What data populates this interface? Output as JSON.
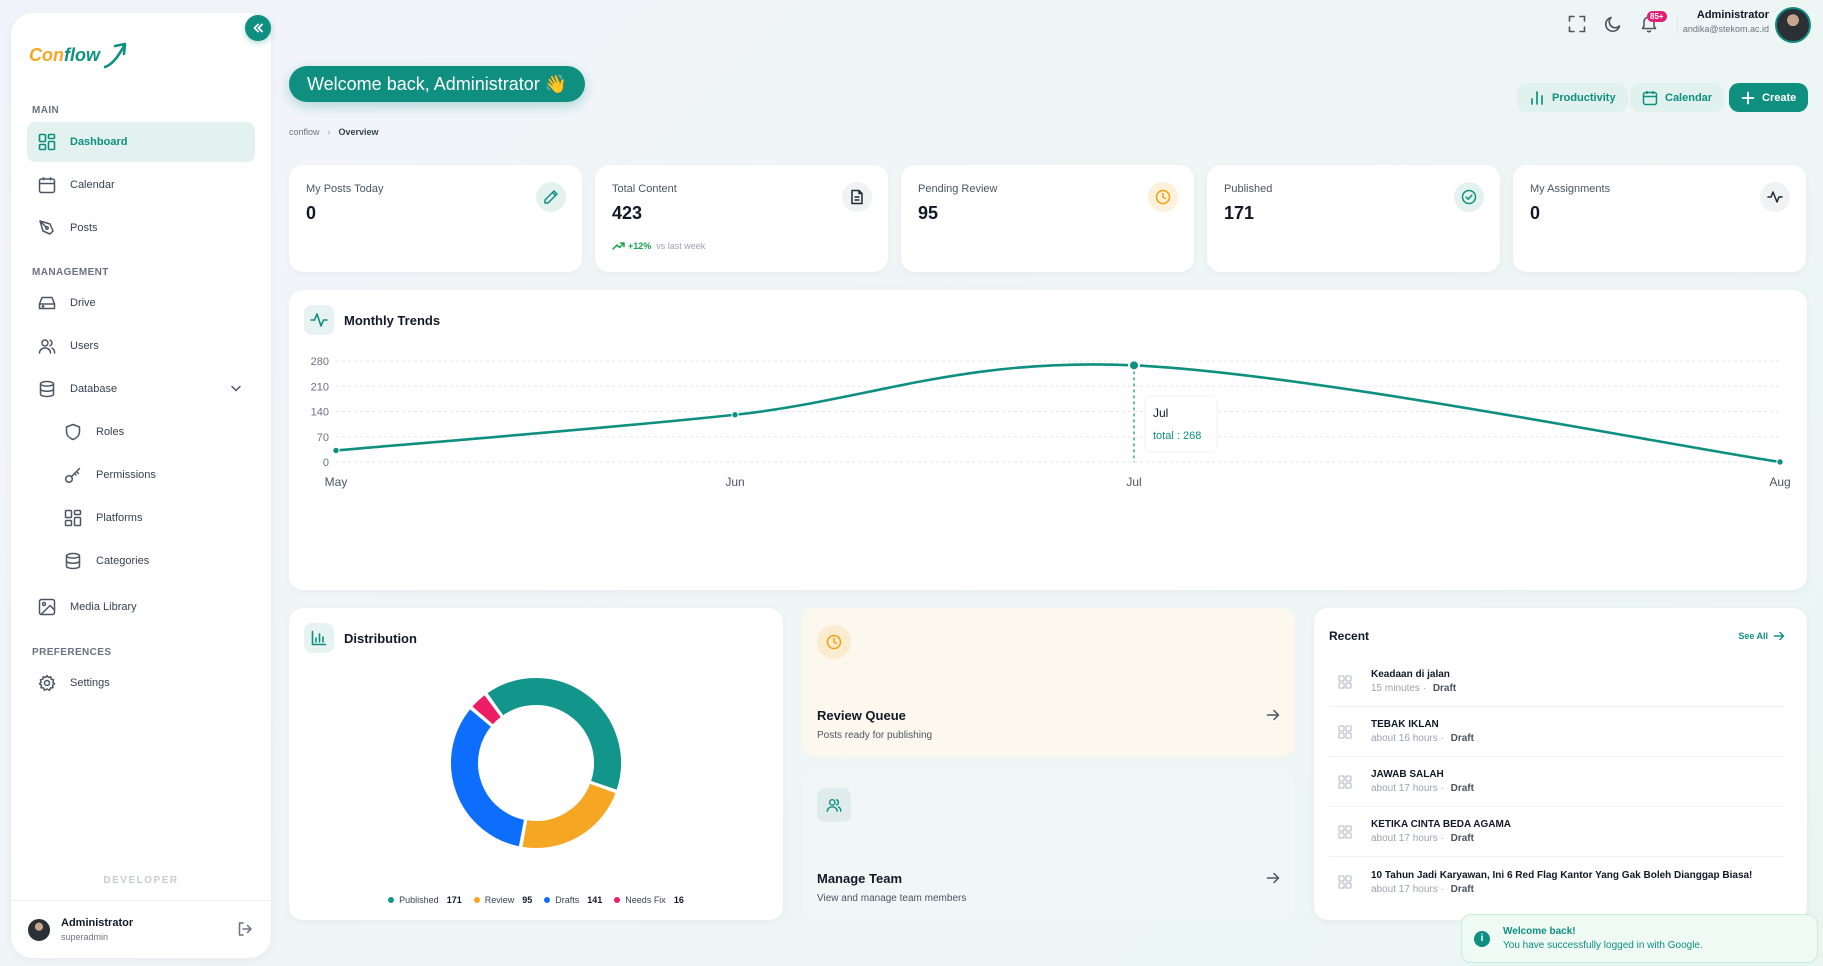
{
  "brand": {
    "part1": "Con",
    "part2": "flow",
    "teal": "#0f8f80",
    "orange": "#f5a623"
  },
  "sidebar": {
    "sections": {
      "main": "MAIN",
      "management": "MANAGEMENT",
      "preferences": "PREFERENCES"
    },
    "items": {
      "dashboard": "Dashboard",
      "calendar": "Calendar",
      "posts": "Posts",
      "drive": "Drive",
      "users": "Users",
      "database": "Database",
      "roles": "Roles",
      "permissions": "Permissions",
      "platforms": "Platforms",
      "categories": "Categories",
      "media": "Media Library",
      "settings": "Settings"
    },
    "developer": "DEVELOPER",
    "user": {
      "name": "Administrator",
      "role": "superadmin"
    }
  },
  "header": {
    "notif_count": "85+",
    "user_name": "Administrator",
    "user_email": "andika@stekom.ac.id"
  },
  "welcome": "Welcome back, Administrator 👋",
  "breadcrumb": {
    "root": "conflow",
    "current": "Overview"
  },
  "actions": {
    "productivity": "Productivity",
    "calendar": "Calendar",
    "create": "Create"
  },
  "stats": [
    {
      "label": "My Posts Today",
      "value": "0",
      "icon": "pencil-icon"
    },
    {
      "label": "Total Content",
      "value": "423",
      "trend": "+12%",
      "trend_note": "vs last week",
      "icon": "document-icon"
    },
    {
      "label": "Pending Review",
      "value": "95",
      "icon": "clock-icon"
    },
    {
      "label": "Published",
      "value": "171",
      "icon": "check-circle-icon"
    },
    {
      "label": "My Assignments",
      "value": "0",
      "icon": "activity-icon"
    }
  ],
  "trends": {
    "title": "Monthly Trends",
    "tooltip": {
      "label": "Jul",
      "text": "total : 268"
    }
  },
  "chart_data": [
    {
      "type": "line",
      "title": "Monthly Trends",
      "categories": [
        "May",
        "Jun",
        "Jul",
        "Aug"
      ],
      "series": [
        {
          "values": [
            32,
            131,
            268,
            0
          ]
        }
      ],
      "yticks": [
        0,
        70,
        140,
        210,
        280
      ],
      "ylim": [
        0,
        280
      ],
      "grid": true
    },
    {
      "type": "pie",
      "title": "Distribution",
      "labels": [
        "Published",
        "Review",
        "Drafts",
        "Needs Fix"
      ],
      "values": [
        171,
        95,
        141,
        16
      ],
      "colors": [
        "#12958a",
        "#f5a623",
        "#0d6efd",
        "#ec1c65"
      ],
      "legend": "bottom"
    }
  ],
  "distribution": {
    "title": "Distribution"
  },
  "review_queue": {
    "title": "Review Queue",
    "subtitle": "Posts ready for publishing"
  },
  "manage_team": {
    "title": "Manage Team",
    "subtitle": "View and manage team members"
  },
  "recent": {
    "title": "Recent",
    "see_all": "See All",
    "items": [
      {
        "title": "Keadaan di jalan",
        "time": "15 minutes",
        "status": "Draft"
      },
      {
        "title": "TEBAK IKLAN",
        "time": "about 16 hours",
        "status": "Draft"
      },
      {
        "title": "JAWAB SALAH",
        "time": "about 17 hours",
        "status": "Draft"
      },
      {
        "title": "KETIKA CINTA BEDA AGAMA",
        "time": "about 17 hours",
        "status": "Draft"
      },
      {
        "title": "10 Tahun Jadi Karyawan, Ini 6 Red Flag Kantor Yang Gak Boleh Dianggap Biasa!",
        "time": "about 17 hours",
        "status": "Draft"
      }
    ]
  },
  "toast": {
    "title": "Welcome back!",
    "message": "You have successfully logged in with Google."
  }
}
